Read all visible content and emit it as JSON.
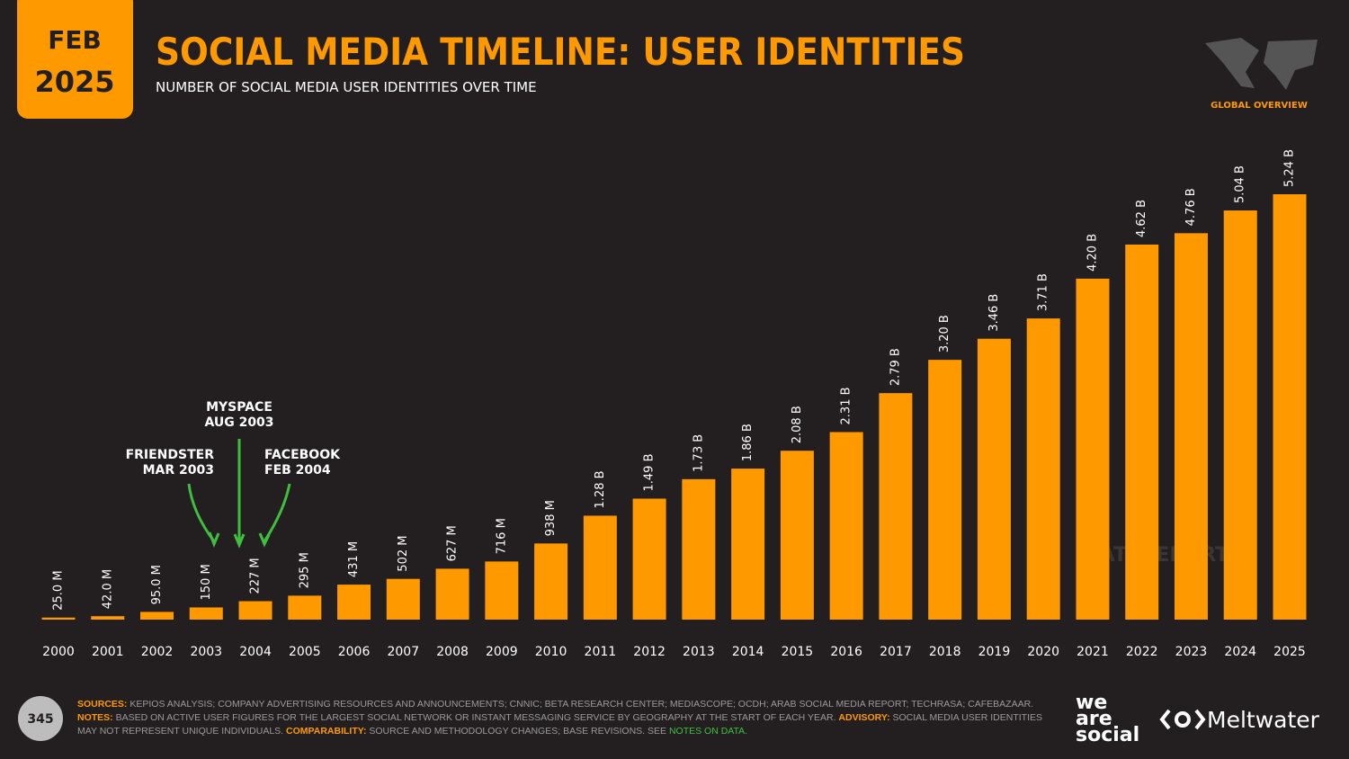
{
  "badge": {
    "month": "FEB",
    "year": "2025"
  },
  "region": "GLOBAL OVERVIEW",
  "chart_data": {
    "type": "bar",
    "title": "SOCIAL MEDIA TIMELINE: USER IDENTITIES",
    "subtitle": "NUMBER OF SOCIAL MEDIA USER IDENTITIES OVER TIME",
    "categories": [
      "2000",
      "2001",
      "2002",
      "2003",
      "2004",
      "2005",
      "2006",
      "2007",
      "2008",
      "2009",
      "2010",
      "2011",
      "2012",
      "2013",
      "2014",
      "2015",
      "2016",
      "2017",
      "2018",
      "2019",
      "2020",
      "2021",
      "2022",
      "2023",
      "2024",
      "2025"
    ],
    "values": [
      25.0,
      42.0,
      95.0,
      150,
      227,
      295,
      431,
      502,
      627,
      716,
      938,
      1280,
      1490,
      1730,
      1860,
      2080,
      2310,
      2790,
      3200,
      3460,
      3710,
      4200,
      4620,
      4760,
      5040,
      5240
    ],
    "value_labels": [
      "25.0 M",
      "42.0 M",
      "95.0 M",
      "150 M",
      "227 M",
      "295 M",
      "431 M",
      "502 M",
      "627 M",
      "716 M",
      "938 M",
      "1.28 B",
      "1.49 B",
      "1.73 B",
      "1.86 B",
      "2.08 B",
      "2.31 B",
      "2.79 B",
      "3.20 B",
      "3.46 B",
      "3.71 B",
      "4.20 B",
      "4.62 B",
      "4.76 B",
      "5.04 B",
      "5.24 B"
    ],
    "color": "#ff9900",
    "annotations": [
      {
        "lines": [
          "FRIENDSTER",
          "MAR 2003"
        ]
      },
      {
        "lines": [
          "MYSPACE",
          "AUG 2003"
        ]
      },
      {
        "lines": [
          "FACEBOOK",
          "FEB 2004"
        ]
      }
    ]
  },
  "watermark": "DATAREPORTAL",
  "footer": {
    "page": "345",
    "sources_label": "SOURCES:",
    "sources": "KEPIOS ANALYSIS; COMPANY ADVERTISING RESOURCES AND ANNOUNCEMENTS; CNNIC; BETA RESEARCH CENTER; MEDIASCOPE; OCDH; ARAB SOCIAL MEDIA REPORT; TECHRASA; CAFEBAZAAR.",
    "notes_label": "NOTES:",
    "notes": "BASED ON ACTIVE USER FIGURES FOR THE LARGEST SOCIAL NETWORK OR INSTANT MESSAGING SERVICE BY GEOGRAPHY AT THE START OF EACH YEAR.",
    "advisory_label": "ADVISORY:",
    "advisory": "SOCIAL MEDIA USER IDENTITIES MAY NOT REPRESENT UNIQUE INDIVIDUALS.",
    "comparability_label": "COMPARABILITY:",
    "comparability": "SOURCE AND METHODOLOGY CHANGES; BASE REVISIONS. SEE",
    "link": "NOTES ON DATA.",
    "logo1": [
      "we",
      "are",
      "social"
    ],
    "logo2": "Meltwater"
  }
}
